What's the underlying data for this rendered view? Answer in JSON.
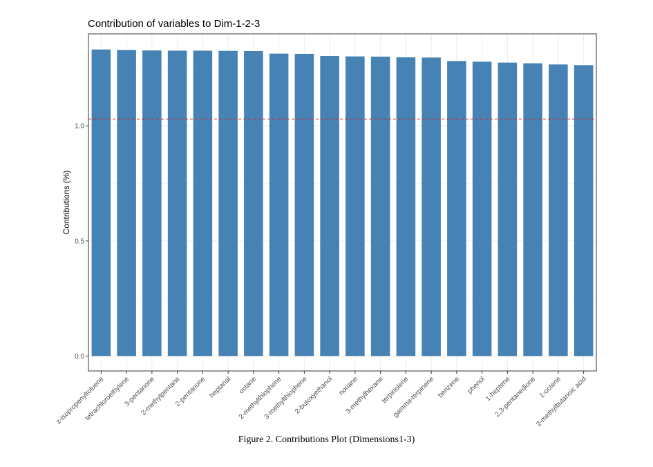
{
  "chart_data": {
    "type": "bar",
    "title": "Contribution of variables to Dim-1-2-3",
    "xlabel": "",
    "ylabel": "Contributions (%)",
    "ylim": [
      -0.065,
      1.4
    ],
    "yticks": [
      0.0,
      0.5,
      1.0
    ],
    "ytick_labels": [
      "0.0",
      "0.5",
      "1.0"
    ],
    "grid": true,
    "reference_line": {
      "value": 1.03,
      "color": "#d62728",
      "style": "dashed"
    },
    "bar_color": "#4682b4",
    "categories": [
      "z-isopropenyltoluene",
      "tetrachloroethylene",
      "3-pentanone",
      "2-methylpentane",
      "2-pentanone",
      "heptanal",
      "octane",
      "2-methylthiophene",
      "3-methylthiophene",
      "2-butoxyethanol",
      "nonane",
      "3-methylhexane",
      "terpinolene",
      "gamma-terpinene",
      "benzene",
      "phenol",
      "1-heptene",
      "2,3-pentanedione",
      "1-octene",
      "2-methylbutanoic acid"
    ],
    "values": [
      1.332,
      1.33,
      1.328,
      1.327,
      1.327,
      1.326,
      1.325,
      1.314,
      1.313,
      1.304,
      1.302,
      1.301,
      1.298,
      1.297,
      1.282,
      1.279,
      1.275,
      1.272,
      1.267,
      1.264
    ]
  },
  "figure_caption": "Figure 2. Contributions Plot (Dimensions1-3)"
}
